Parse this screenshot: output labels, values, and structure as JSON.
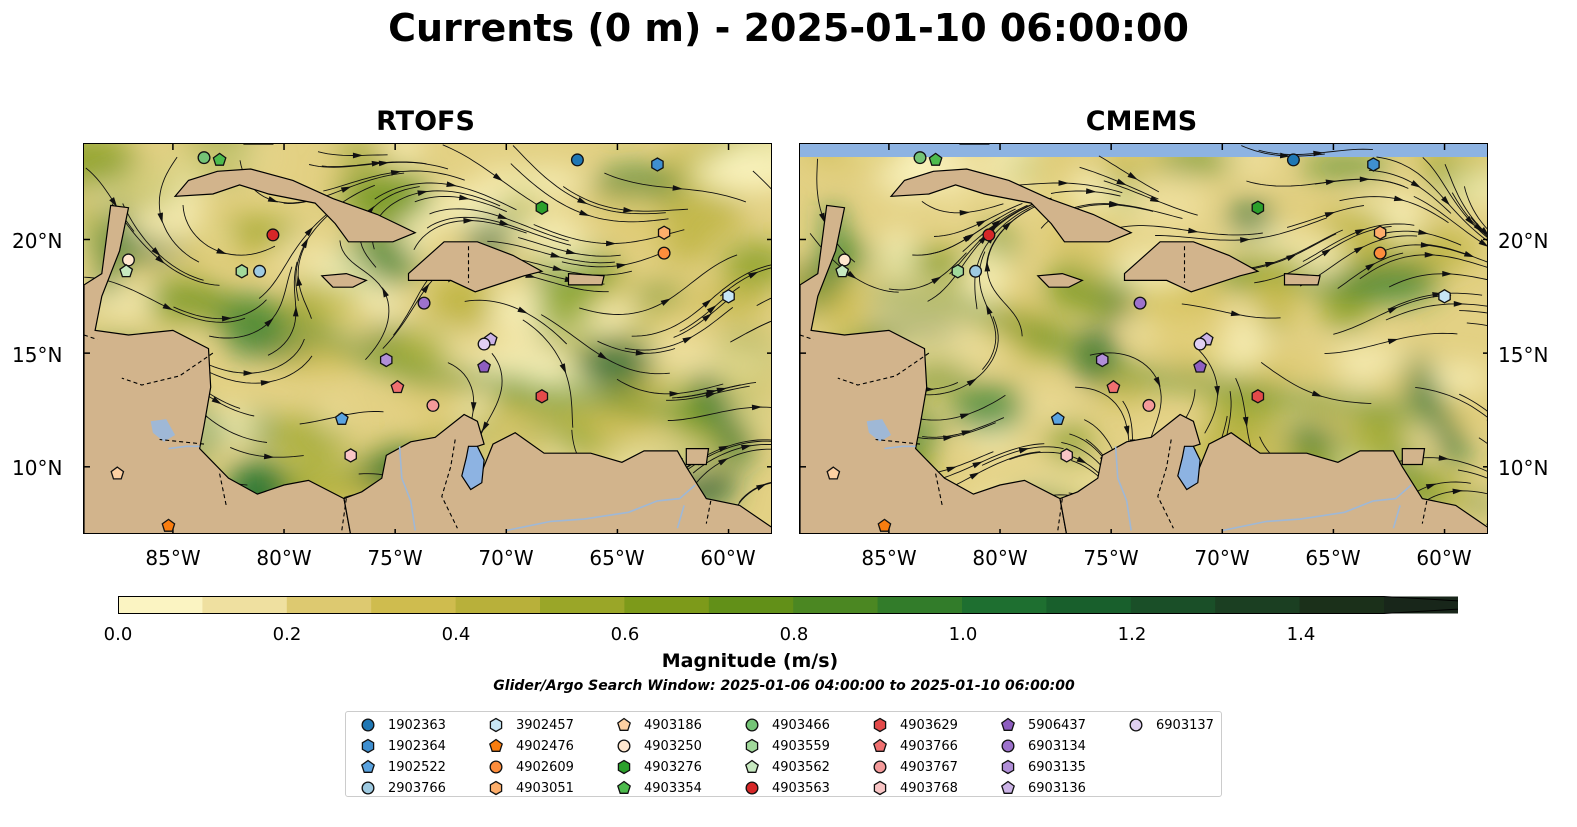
{
  "title": "Currents (0 m) - 2025-01-10 06:00:00",
  "panels": [
    {
      "title": "RTOFS"
    },
    {
      "title": "CMEMS"
    }
  ],
  "axes": {
    "lon_labels": [
      "85°W",
      "80°W",
      "75°W",
      "70°W",
      "65°W",
      "60°W"
    ],
    "lat_labels": [
      "20°N",
      "15°N",
      "10°N"
    ]
  },
  "colorbar": {
    "label": "Magnitude (m/s)",
    "ticks": [
      "0.0",
      "0.2",
      "0.4",
      "0.6",
      "0.8",
      "1.0",
      "1.2",
      "1.4"
    ],
    "colors": [
      "#fbf4c2",
      "#efe0a0",
      "#ddc970",
      "#cfbc4e",
      "#b8b03a",
      "#9aa628",
      "#7d9a1a",
      "#629018",
      "#4b8722",
      "#327c2a",
      "#1e6f30",
      "#185f2c",
      "#1a4f28",
      "#1b3f22",
      "#1b301a",
      "#18261a"
    ],
    "range": [
      0,
      1.6
    ]
  },
  "search_window": "Glider/Argo Search Window: 2025-01-06 04:00:00 to 2025-01-10 06:00:00",
  "colors": {
    "land": "#d2b48c",
    "water_body": "#8db3e2",
    "river": "#9fb8d6"
  },
  "legend": [
    {
      "id": "1902363",
      "color": "#1f77b4",
      "shape": "circle"
    },
    {
      "id": "1902364",
      "color": "#3f8fd0",
      "shape": "hexagon"
    },
    {
      "id": "1902522",
      "color": "#5aa3e0",
      "shape": "pentagon"
    },
    {
      "id": "2903766",
      "color": "#9ecae1",
      "shape": "circle"
    },
    {
      "id": "3902457",
      "color": "#c6e6f5",
      "shape": "hexagon"
    },
    {
      "id": "4902476",
      "color": "#f97d0f",
      "shape": "pentagon"
    },
    {
      "id": "4902609",
      "color": "#fd8d3c",
      "shape": "circle"
    },
    {
      "id": "4903051",
      "color": "#fdae6b",
      "shape": "hexagon"
    },
    {
      "id": "4903186",
      "color": "#fdd0a2",
      "shape": "pentagon"
    },
    {
      "id": "4903250",
      "color": "#fee6ce",
      "shape": "circle"
    },
    {
      "id": "4903276",
      "color": "#2ca02c",
      "shape": "hexagon"
    },
    {
      "id": "4903354",
      "color": "#4dbb4d",
      "shape": "pentagon"
    },
    {
      "id": "4903466",
      "color": "#74c476",
      "shape": "circle"
    },
    {
      "id": "4903559",
      "color": "#a1d99b",
      "shape": "hexagon"
    },
    {
      "id": "4903562",
      "color": "#c7e9c0",
      "shape": "pentagon"
    },
    {
      "id": "4903563",
      "color": "#d62728",
      "shape": "circle"
    },
    {
      "id": "4903629",
      "color": "#e34a4a",
      "shape": "hexagon"
    },
    {
      "id": "4903766",
      "color": "#f07070",
      "shape": "pentagon"
    },
    {
      "id": "4903767",
      "color": "#f49a9a",
      "shape": "circle"
    },
    {
      "id": "4903768",
      "color": "#f9c5c5",
      "shape": "hexagon"
    },
    {
      "id": "5906437",
      "color": "#8e5ec0",
      "shape": "pentagon"
    },
    {
      "id": "6903134",
      "color": "#9d72cc",
      "shape": "circle"
    },
    {
      "id": "6903135",
      "color": "#b18fd8",
      "shape": "hexagon"
    },
    {
      "id": "6903136",
      "color": "#cbb3e6",
      "shape": "pentagon"
    },
    {
      "id": "6903137",
      "color": "#e0cff2",
      "shape": "circle"
    }
  ],
  "markers": [
    {
      "id": "1902363",
      "lon": -66.8,
      "lat": 23.5
    },
    {
      "id": "1902364",
      "lon": -63.2,
      "lat": 23.3
    },
    {
      "id": "1902522",
      "lon": -77.4,
      "lat": 12.1
    },
    {
      "id": "2903766",
      "lon": -81.1,
      "lat": 18.6
    },
    {
      "id": "3902457",
      "lon": -60.0,
      "lat": 17.5
    },
    {
      "id": "4902476",
      "lon": -85.2,
      "lat": 7.4
    },
    {
      "id": "4902609",
      "lon": -62.9,
      "lat": 19.4
    },
    {
      "id": "4903051",
      "lon": -62.9,
      "lat": 20.3
    },
    {
      "id": "4903186",
      "lon": -87.5,
      "lat": 9.7
    },
    {
      "id": "4903250",
      "lon": -87.0,
      "lat": 19.1
    },
    {
      "id": "4903276",
      "lon": -68.4,
      "lat": 21.4
    },
    {
      "id": "4903354",
      "lon": -82.9,
      "lat": 23.5
    },
    {
      "id": "4903466",
      "lon": -83.6,
      "lat": 23.6
    },
    {
      "id": "4903559",
      "lon": -81.9,
      "lat": 18.6
    },
    {
      "id": "4903562",
      "lon": -87.1,
      "lat": 18.6
    },
    {
      "id": "4903563",
      "lon": -80.5,
      "lat": 20.2
    },
    {
      "id": "4903629",
      "lon": -68.4,
      "lat": 13.1
    },
    {
      "id": "4903766",
      "lon": -74.9,
      "lat": 13.5
    },
    {
      "id": "4903767",
      "lon": -73.3,
      "lat": 12.7
    },
    {
      "id": "4903768",
      "lon": -77.0,
      "lat": 10.5
    },
    {
      "id": "5906437",
      "lon": -71.0,
      "lat": 14.4
    },
    {
      "id": "6903134",
      "lon": -73.7,
      "lat": 17.2
    },
    {
      "id": "6903135",
      "lon": -75.4,
      "lat": 14.7
    },
    {
      "id": "6903136",
      "lon": -70.7,
      "lat": 15.6
    },
    {
      "id": "6903137",
      "lon": -71.0,
      "lat": 15.4
    }
  ],
  "map_extent": {
    "lon": [
      -89,
      -58
    ],
    "lat": [
      7,
      24.2
    ]
  }
}
